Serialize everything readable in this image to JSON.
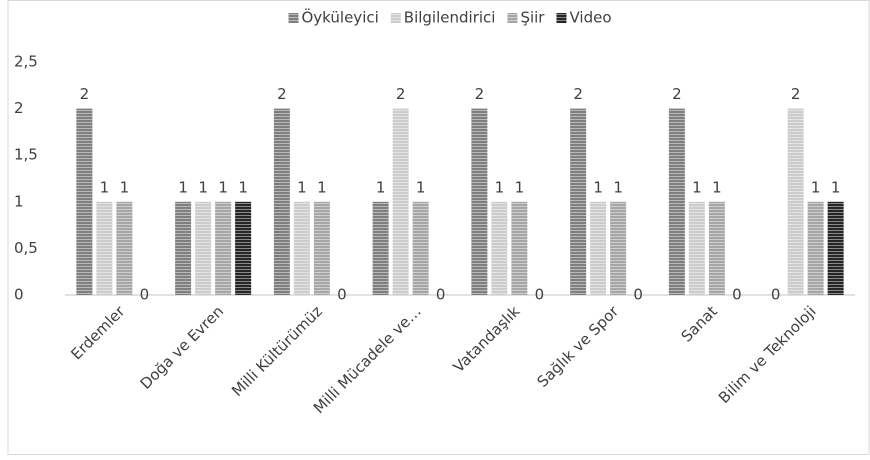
{
  "chart_data": {
    "type": "bar",
    "categories": [
      "Erdemler",
      "Doğa ve Evren",
      "Milli Kültürümüz",
      "Milli Mücadele ve…",
      "Vatandaşlık",
      "Sağlık ve Spor",
      "Sanat",
      "Bilim ve Teknoloji"
    ],
    "series": [
      {
        "name": "Öyküleyici",
        "color": "#7f7f7f",
        "values": [
          2,
          1,
          2,
          1,
          2,
          2,
          2,
          0
        ]
      },
      {
        "name": "Bilgilendirici",
        "color": "#cccccc",
        "values": [
          1,
          1,
          1,
          2,
          1,
          1,
          1,
          2
        ]
      },
      {
        "name": "Şiir",
        "color": "#a6a6a6",
        "values": [
          1,
          1,
          1,
          1,
          1,
          1,
          1,
          1
        ]
      },
      {
        "name": "Video",
        "color": "#262626",
        "values": [
          0,
          1,
          0,
          0,
          0,
          0,
          0,
          1
        ]
      }
    ],
    "ylim": [
      0,
      2.5
    ],
    "yticks": [
      0,
      {
        "value": 0.5,
        "label": "0,5"
      },
      1,
      {
        "value": 1.5,
        "label": "1,5"
      },
      2,
      {
        "value": 2.5,
        "label": "2,5"
      }
    ],
    "legend": "top",
    "grid": false
  }
}
